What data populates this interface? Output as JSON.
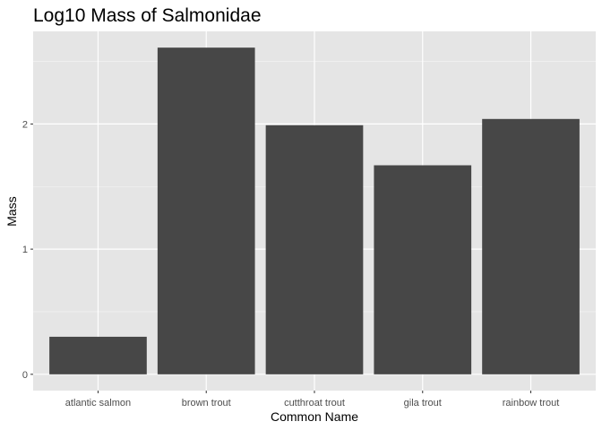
{
  "chart_data": {
    "type": "bar",
    "title": "Log10 Mass of Salmonidae",
    "xlabel": "Common Name",
    "ylabel": "Mass",
    "categories": [
      "atlantic salmon",
      "brown trout",
      "cutthroat trout",
      "gila trout",
      "rainbow trout"
    ],
    "values": [
      0.3,
      2.61,
      1.99,
      1.67,
      2.04
    ],
    "ylim": [
      -0.13,
      2.74
    ],
    "yticks": [
      0,
      1,
      2
    ],
    "ytick_labels": [
      "0",
      "1",
      "2"
    ],
    "grid": true,
    "colors": {
      "panel": "#e5e5e5",
      "grid_major": "#ffffff",
      "bar": "#474747",
      "tick_text": "#4d4d4d",
      "tick_mark": "#333333"
    }
  }
}
